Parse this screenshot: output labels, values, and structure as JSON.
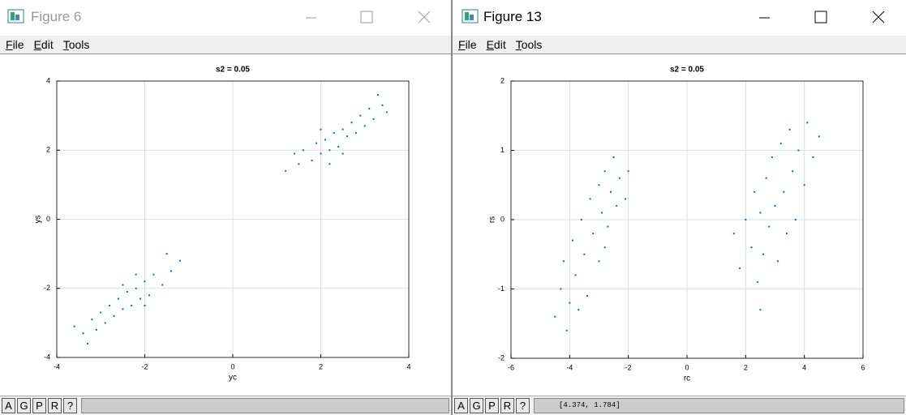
{
  "windows": [
    {
      "title": "Figure 6",
      "menu": [
        "File",
        "Edit",
        "Tools"
      ],
      "buttons": [
        "A",
        "G",
        "P",
        "R",
        "?"
      ]
    },
    {
      "title": "Figure 13",
      "menu": [
        "File",
        "Edit",
        "Tools"
      ],
      "buttons": [
        "A",
        "G",
        "P",
        "R",
        "?"
      ],
      "status": "[4.374, 1.784]"
    }
  ],
  "chart_data": [
    {
      "type": "scatter",
      "title": "s2 = 0.05",
      "xlabel": "yc",
      "ylabel": "ys",
      "color": "#0072bd",
      "grid": true,
      "xlim": [
        -4,
        4
      ],
      "ylim": [
        -4,
        4
      ],
      "xticks": [
        -4,
        -2,
        0,
        2,
        4
      ],
      "yticks": [
        -4,
        -2,
        0,
        2,
        4
      ],
      "x": [
        1.2,
        1.5,
        1.6,
        1.8,
        1.9,
        2.0,
        2.1,
        2.2,
        2.3,
        2.4,
        2.5,
        2.6,
        2.7,
        2.8,
        2.9,
        3.0,
        3.1,
        3.2,
        3.4,
        3.5,
        2.0,
        2.5,
        1.4,
        3.3,
        2.2,
        -1.2,
        -1.4,
        -1.6,
        -1.8,
        -1.9,
        -2.0,
        -2.1,
        -2.2,
        -2.3,
        -2.4,
        -2.5,
        -2.6,
        -2.7,
        -2.8,
        -2.9,
        -3.0,
        -3.1,
        -3.2,
        -3.4,
        -3.6,
        -2.0,
        -2.5,
        -1.5,
        -3.3,
        -2.2
      ],
      "y": [
        1.4,
        1.6,
        2.0,
        1.7,
        2.2,
        1.9,
        2.3,
        2.0,
        2.5,
        2.1,
        2.6,
        2.4,
        2.8,
        2.5,
        3.0,
        2.7,
        3.2,
        2.9,
        3.3,
        3.1,
        2.6,
        1.9,
        1.9,
        3.6,
        1.6,
        -1.2,
        -1.5,
        -1.9,
        -1.6,
        -2.2,
        -1.8,
        -2.3,
        -2.0,
        -2.5,
        -2.1,
        -2.6,
        -2.3,
        -2.8,
        -2.5,
        -3.0,
        -2.7,
        -3.2,
        -2.9,
        -3.3,
        -3.1,
        -2.5,
        -1.9,
        -1.0,
        -3.6,
        -1.6
      ]
    },
    {
      "type": "scatter",
      "title": "s2 = 0.05",
      "xlabel": "rc",
      "ylabel": "rs",
      "color": "#0072bd",
      "grid": true,
      "xlim": [
        -6,
        6
      ],
      "ylim": [
        -2,
        2
      ],
      "xticks": [
        -6,
        -4,
        -2,
        0,
        2,
        4,
        6
      ],
      "yticks": [
        -2,
        -1,
        0,
        1,
        2
      ],
      "x": [
        -4.5,
        -4.3,
        -4.2,
        -4.0,
        -3.9,
        -3.8,
        -3.6,
        -3.5,
        -3.4,
        -3.3,
        -3.2,
        -3.0,
        -3.0,
        -2.9,
        -2.8,
        -2.7,
        -2.6,
        -2.5,
        -2.4,
        -2.3,
        -2.1,
        -2.0,
        -4.1,
        -3.7,
        -2.8,
        1.6,
        1.8,
        2.0,
        2.2,
        2.3,
        2.4,
        2.5,
        2.6,
        2.7,
        2.8,
        2.9,
        3.0,
        3.1,
        3.2,
        3.3,
        3.4,
        3.5,
        3.6,
        3.7,
        3.8,
        4.0,
        4.1,
        4.3,
        4.5,
        2.5
      ],
      "y": [
        -1.4,
        -1.0,
        -0.6,
        -1.2,
        -0.3,
        -0.8,
        0.0,
        -0.5,
        -1.1,
        0.3,
        -0.2,
        0.5,
        -0.6,
        0.1,
        0.7,
        -0.1,
        0.4,
        0.9,
        0.2,
        0.6,
        0.3,
        0.7,
        -1.6,
        -1.3,
        -0.4,
        -0.2,
        -0.7,
        0.0,
        -0.4,
        0.4,
        -0.9,
        0.1,
        -0.5,
        0.6,
        -0.1,
        0.9,
        0.2,
        -0.6,
        1.1,
        0.4,
        -0.2,
        1.3,
        0.7,
        0.0,
        1.0,
        0.5,
        1.4,
        0.9,
        1.2,
        -1.3
      ]
    }
  ]
}
